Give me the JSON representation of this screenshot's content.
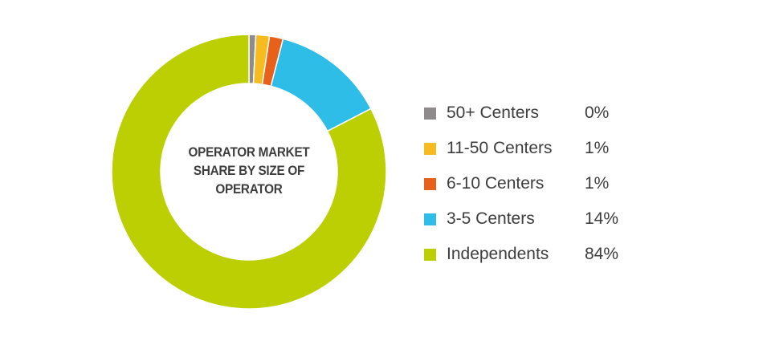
{
  "chart_data": {
    "type": "pie",
    "title": "OPERATOR MARKET SHARE BY SIZE OF OPERATOR",
    "hole": true,
    "legend_position": "right",
    "slices": [
      {
        "label": "50+ Centers",
        "value": 0,
        "value_label": "0%",
        "color": "#8f8b8c",
        "drawn_value": 0.8
      },
      {
        "label": "11-50 Centers",
        "value": 1,
        "value_label": "1%",
        "color": "#f6bb1f",
        "drawn_value": 1.6
      },
      {
        "label": "6-10 Centers",
        "value": 1,
        "value_label": "1%",
        "color": "#e8611a",
        "drawn_value": 1.6
      },
      {
        "label": "3-5 Centers",
        "value": 14,
        "value_label": "14%",
        "color": "#2ebde6",
        "drawn_value": 13.4
      },
      {
        "label": "Independents",
        "value": 84,
        "value_label": "84%",
        "color": "#bccf03",
        "drawn_value": 82.6
      }
    ]
  }
}
